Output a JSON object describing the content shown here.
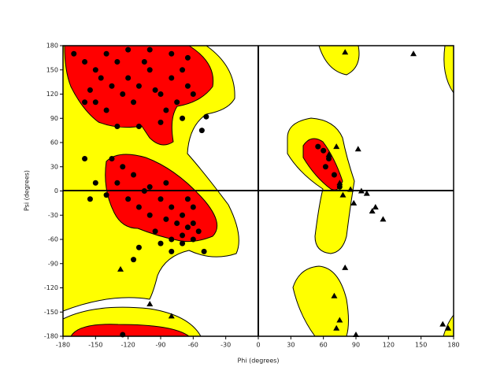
{
  "chart_data": {
    "type": "scatter",
    "x_label": "Phi (degrees)",
    "y_label": "Psi (degrees)",
    "xlim": [
      -180,
      180
    ],
    "ylim": [
      -180,
      180
    ],
    "xticks": [
      -180,
      -150,
      -120,
      -90,
      -60,
      -30,
      0,
      30,
      60,
      90,
      120,
      150,
      180
    ],
    "yticks": [
      -180,
      -150,
      -120,
      -90,
      -60,
      -30,
      0,
      30,
      60,
      90,
      120,
      150,
      180
    ],
    "series": [
      {
        "marker": "circle",
        "color": "#000000",
        "x": [
          -170,
          -160,
          -150,
          -140,
          -130,
          -120,
          -110,
          -100,
          -90,
          -80,
          -70,
          -65,
          -75,
          -85,
          -95,
          -105,
          -115,
          -125,
          -135,
          -145,
          -155,
          -160,
          -120,
          -100,
          -80,
          -65,
          -60,
          -70,
          -90,
          -110,
          -130,
          -140,
          -150,
          -48,
          -52,
          -60,
          -65,
          -70,
          -55,
          -75,
          -80,
          -85,
          -90,
          -95,
          -100,
          -110,
          -120,
          -130,
          -125,
          -115,
          -105,
          -60,
          -70,
          -80,
          -65,
          -90,
          -140,
          -135,
          -150,
          -160,
          -155,
          -110,
          -115,
          -80,
          -70,
          -50,
          -60,
          -100,
          -85,
          60,
          65,
          55,
          70,
          62,
          75,
          -125
        ],
        "y": [
          170,
          160,
          150,
          170,
          160,
          140,
          130,
          150,
          120,
          140,
          150,
          130,
          110,
          100,
          125,
          160,
          110,
          120,
          130,
          140,
          125,
          110,
          175,
          175,
          170,
          165,
          120,
          90,
          85,
          80,
          80,
          100,
          110,
          92,
          75,
          -40,
          -45,
          -30,
          -50,
          -40,
          -20,
          -35,
          -10,
          -50,
          -30,
          -20,
          -10,
          10,
          30,
          20,
          0,
          -20,
          -55,
          -60,
          -10,
          -65,
          -5,
          40,
          10,
          40,
          -10,
          -70,
          -85,
          -75,
          -65,
          -75,
          -60,
          5,
          10,
          50,
          40,
          55,
          20,
          30,
          5,
          -178
        ]
      },
      {
        "marker": "triangle",
        "color": "#000000",
        "x": [
          143,
          80,
          72,
          92,
          65,
          75,
          85,
          95,
          100,
          105,
          108,
          115,
          88,
          78,
          80,
          70,
          75,
          72,
          90,
          170,
          175,
          -127,
          -100,
          -80
        ],
        "y": [
          170,
          172,
          55,
          52,
          45,
          10,
          2,
          0,
          -3,
          -25,
          -20,
          -35,
          -15,
          -5,
          -95,
          -130,
          -160,
          -170,
          -178,
          -165,
          -170,
          -97,
          -140,
          -155
        ]
      }
    ]
  }
}
